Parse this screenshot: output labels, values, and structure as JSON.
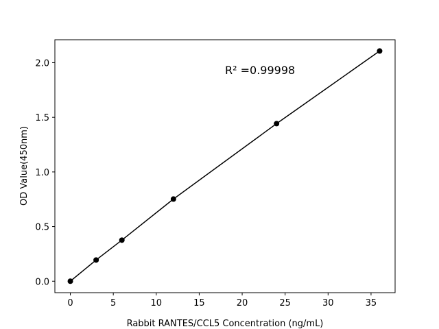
{
  "chart_data": {
    "type": "line",
    "x_label": "Rabbit RANTES/CCL5 Concentration (ng/mL)",
    "y_label": "OD Value(450nm)",
    "annotation": "R² =0.99998",
    "series": [
      {
        "color": "#000000",
        "x": [
          0,
          3,
          6,
          12,
          24,
          36
        ],
        "values": [
          0,
          0.194,
          0.376,
          0.752,
          1.442,
          2.107
        ]
      }
    ],
    "xlim": [
      -1.8,
      37.8
    ],
    "ylim": [
      -0.105,
      2.21
    ],
    "xticks": [
      0,
      5,
      10,
      15,
      20,
      25,
      30,
      35
    ],
    "yticks": [
      {
        "value": 0,
        "label": "0.0"
      },
      {
        "value": 0.5,
        "label": "0.5"
      },
      {
        "value": 1,
        "label": "1.0"
      },
      {
        "value": 1.5,
        "label": "1.5"
      },
      {
        "value": 2,
        "label": "2.0"
      }
    ]
  }
}
